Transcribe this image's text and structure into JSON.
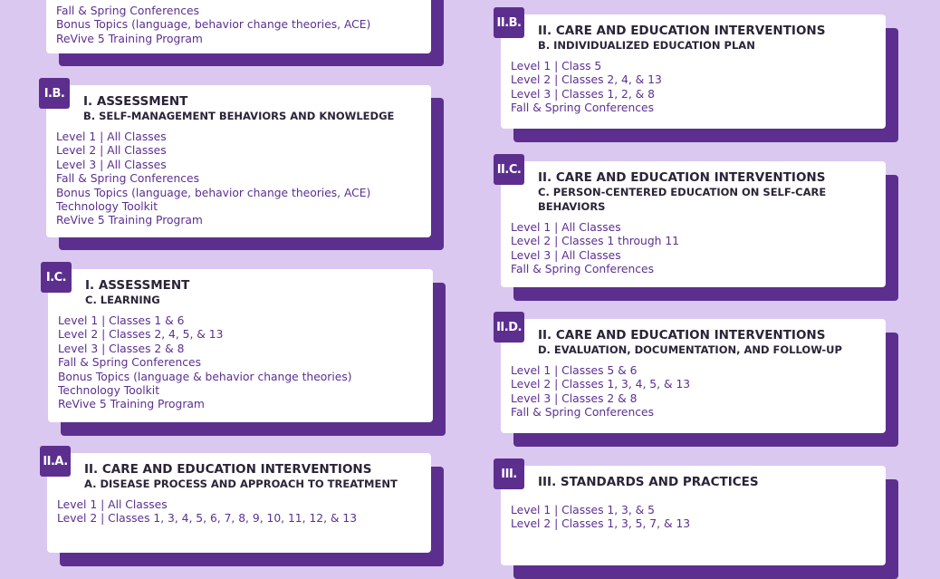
{
  "cards": [
    {
      "items": [
        "Fall & Spring Conferences",
        "Bonus Topics (language, behavior change theories, ACE)",
        "ReVive 5 Training Program"
      ]
    },
    {
      "tag": "I.B.",
      "heading": "I. ASSESSMENT",
      "subheading": "B. SELF-MANAGEMENT BEHAVIORS AND KNOWLEDGE",
      "items": [
        "Level 1 | All Classes",
        "Level 2 | All Classes",
        "Level 3 | All Classes",
        "Fall & Spring Conferences",
        "Bonus Topics (language, behavior change theories, ACE)",
        "Technology Toolkit",
        "ReVive 5 Training Program"
      ]
    },
    {
      "tag": "I.C.",
      "heading": "I. ASSESSMENT",
      "subheading": "C. LEARNING",
      "items": [
        "Level 1 | Classes 1 & 6",
        "Level 2 | Classes 2, 4, 5, & 13",
        "Level 3 | Classes 2 & 8",
        "Fall & Spring Conferences",
        "Bonus Topics (language & behavior change theories)",
        "Technology Toolkit",
        "ReVive 5 Training Program"
      ]
    },
    {
      "tag": "II.A.",
      "heading": "II. CARE AND EDUCATION INTERVENTIONS",
      "subheading": "A. DISEASE PROCESS AND APPROACH TO TREATMENT",
      "items": [
        "Level 1 | All Classes",
        "Level 2 | Classes 1, 3, 4, 5, 6, 7, 8, 9, 10, 11, 12, & 13"
      ]
    },
    {
      "tag": "II.B.",
      "heading": "II. CARE AND EDUCATION INTERVENTIONS",
      "subheading": "B. INDIVIDUALIZED EDUCATION PLAN",
      "items": [
        "Level 1 | Class 5",
        "Level 2 | Classes 2, 4, & 13",
        "Level 3 | Classes 1, 2, & 8",
        "Fall & Spring Conferences"
      ]
    },
    {
      "tag": "II.C.",
      "heading": "II. CARE AND EDUCATION INTERVENTIONS",
      "subheading": "C. PERSON-CENTERED EDUCATION ON SELF-CARE BEHAVIORS",
      "items": [
        "Level 1 | All Classes",
        "Level 2 | Classes 1 through 11",
        "Level 3 | All Classes",
        "Fall & Spring Conferences"
      ]
    },
    {
      "tag": "II.D.",
      "heading": "II. CARE AND EDUCATION INTERVENTIONS",
      "subheading": "D. EVALUATION, DOCUMENTATION, AND FOLLOW-UP",
      "items": [
        "Level 1 | Classes 5 & 6",
        "Level 2 | Classes 1, 3, 4, 5, & 13",
        "Level 3 | Classes 2 & 8",
        "Fall & Spring Conferences"
      ]
    },
    {
      "tag": "III.",
      "heading": "III. STANDARDS AND PRACTICES",
      "items": [
        "Level 1 | Classes 1, 3, & 5",
        "Level 2 | Classes 1, 3, 5, 7, & 13"
      ]
    }
  ]
}
